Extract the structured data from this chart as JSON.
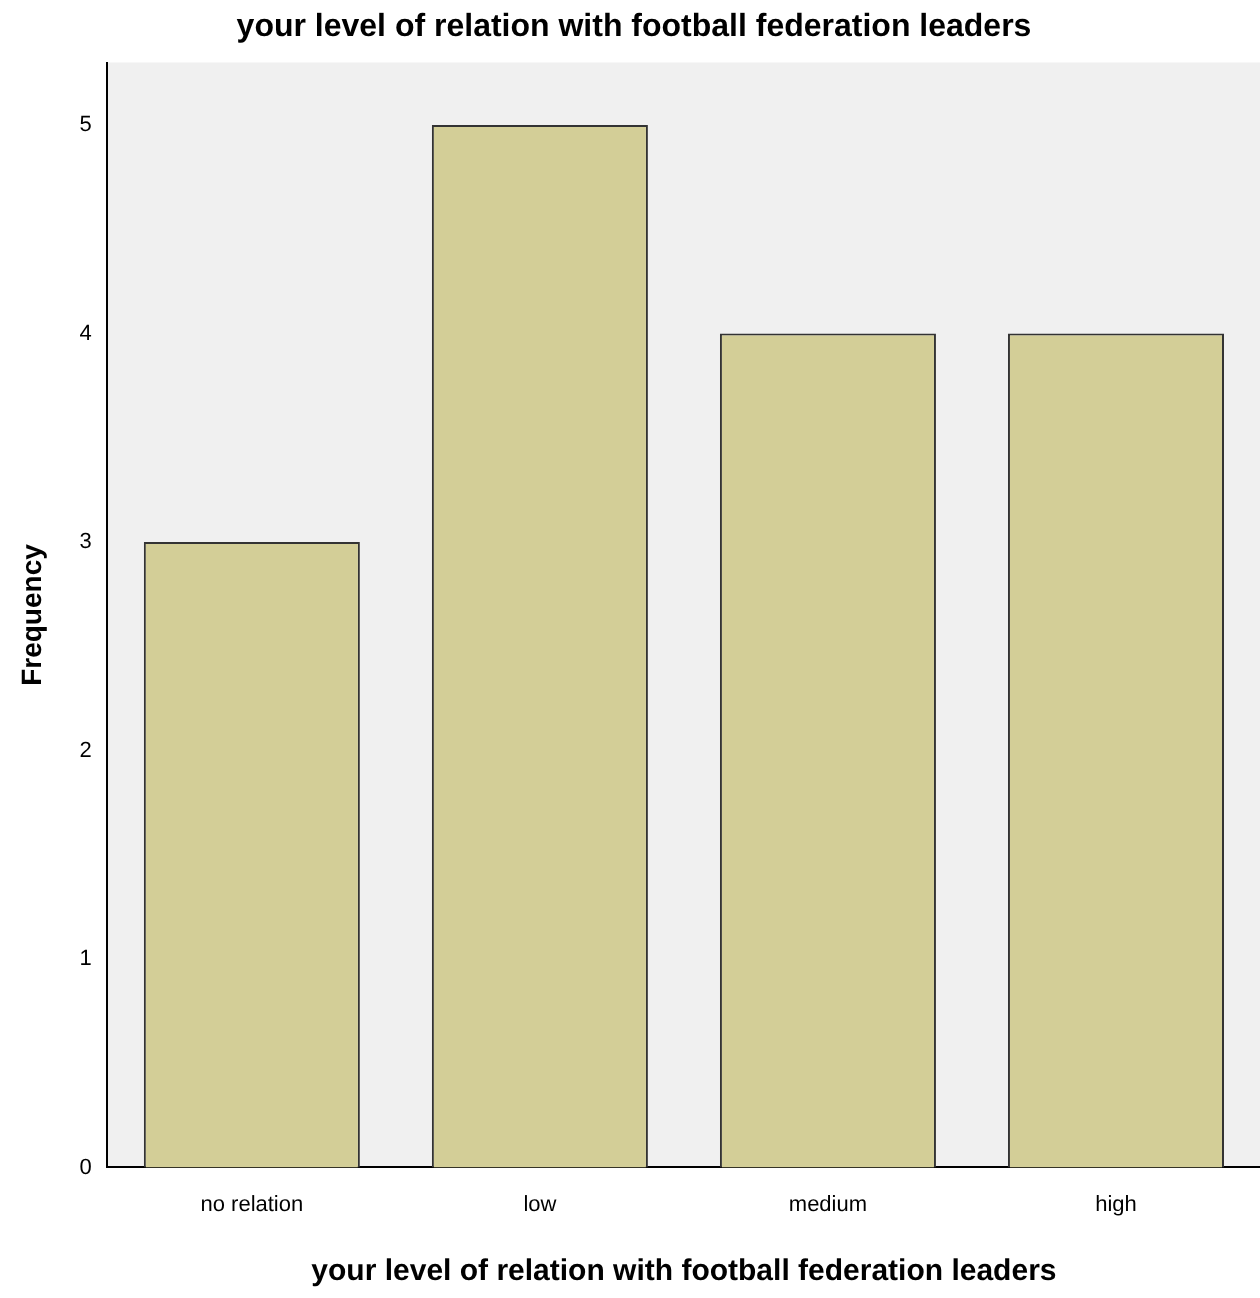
{
  "chart_data": {
    "type": "bar",
    "title": "your level of relation with football federation leaders",
    "xlabel": "your level of relation with football federation leaders",
    "ylabel": "Frequency",
    "categories": [
      "no relation",
      "low",
      "medium",
      "high"
    ],
    "values": [
      3,
      5,
      4,
      4
    ],
    "color": "#d3ce97",
    "ylim": [
      0,
      5.3
    ],
    "yticks": [
      0,
      1,
      2,
      3,
      4,
      5
    ],
    "grid": false,
    "legend": false
  }
}
